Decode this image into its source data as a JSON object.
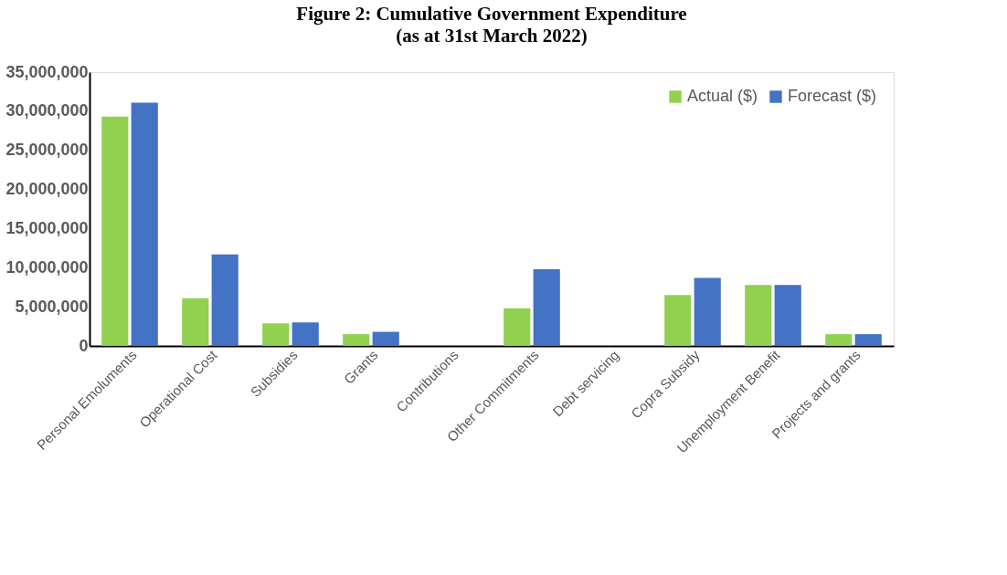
{
  "chart_data": {
    "type": "bar",
    "title": "Figure 2: Cumulative Government Expenditure",
    "subtitle": "(as at 31st March 2022)",
    "categories": [
      "Personal Emoluments",
      "Operational Cost",
      "Subsidies",
      "Grants",
      "Contributions",
      "Other Commitments",
      "Debt servicing",
      "Copra Subsidy",
      "Unemployment Benefit",
      "Projects and grants"
    ],
    "series": [
      {
        "name": "Actual ($)",
        "color": "#92d050",
        "values": [
          29300000,
          6100000,
          2900000,
          1500000,
          0,
          4800000,
          0,
          6500000,
          7800000,
          1500000
        ]
      },
      {
        "name": "Forecast ($)",
        "color": "#4472c4",
        "values": [
          31100000,
          11700000,
          3000000,
          1800000,
          0,
          9800000,
          0,
          8700000,
          7800000,
          1500000
        ]
      }
    ],
    "ylim": [
      0,
      35000000
    ],
    "yticks": [
      {
        "value": 0,
        "label": "0"
      },
      {
        "value": 5000000,
        "label": "5,000,000"
      },
      {
        "value": 10000000,
        "label": "10,000,000"
      },
      {
        "value": 15000000,
        "label": "15,000,000"
      },
      {
        "value": 20000000,
        "label": "20,000,000"
      },
      {
        "value": 25000000,
        "label": "25,000,000"
      },
      {
        "value": 30000000,
        "label": "30,000,000"
      },
      {
        "value": 35000000,
        "label": "35,000,000"
      }
    ],
    "grid": false,
    "legend": "top right"
  }
}
